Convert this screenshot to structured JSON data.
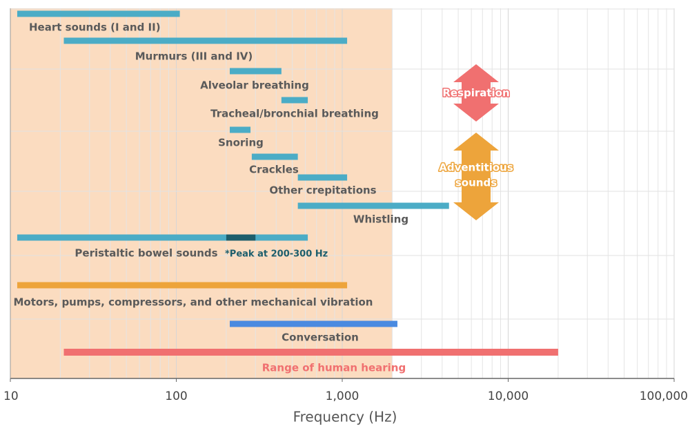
{
  "chart_data": {
    "type": "range_bar",
    "x_label": "Frequency (Hz)",
    "xscale": "log",
    "xlim": [
      10,
      100000
    ],
    "xticks": [
      10,
      100,
      {
        "value": 1000,
        "label": "1,000"
      },
      {
        "value": 10000,
        "label": "10,000"
      },
      {
        "value": 100000,
        "label": "100,000"
      }
    ],
    "xminorticks": [
      20,
      30,
      40,
      50,
      60,
      70,
      80,
      90,
      200,
      300,
      400,
      500,
      600,
      700,
      800,
      900,
      2000,
      3000,
      4000,
      5000,
      6000,
      7000,
      8000,
      9000,
      20000,
      30000,
      40000,
      50000,
      60000,
      70000,
      80000,
      90000
    ],
    "grid": true,
    "shaded_range": [
      10,
      2000
    ],
    "shaded_color": "#fbdcc0",
    "bars": [
      {
        "name": "Heart sounds (I and II)",
        "low": 11,
        "high": 105,
        "color": "#4bacc6"
      },
      {
        "name": "Murmurs (III and IV)",
        "low": 21,
        "high": 1070,
        "color": "#4bacc6"
      },
      {
        "name": "Alveolar breathing",
        "low": 210,
        "high": 430,
        "color": "#4bacc6"
      },
      {
        "name": "Tracheal/bronchial breathing",
        "low": 430,
        "high": 620,
        "color": "#4bacc6"
      },
      {
        "name": "Snoring",
        "low": 210,
        "high": 280,
        "color": "#4bacc6"
      },
      {
        "name": "Crackles",
        "low": 285,
        "high": 540,
        "color": "#4bacc6"
      },
      {
        "name": "Other crepitations",
        "low": 540,
        "high": 1070,
        "color": "#4bacc6"
      },
      {
        "name": "Whistling",
        "low": 540,
        "high": 4400,
        "color": "#4bacc6"
      },
      {
        "name": "Peristaltic bowel sounds",
        "low": 11,
        "high": 620,
        "color": "#4bacc6",
        "peak_low": 200,
        "peak_high": 300,
        "peak_color": "#1d5e6c",
        "peak_label": "*Peak at 200-300 Hz"
      },
      {
        "name": "Motors, pumps, compressors, and other mechanical vibration",
        "low": 11,
        "high": 1070,
        "color": "#eda43b"
      },
      {
        "name": "Conversation",
        "low": 210,
        "high": 2150,
        "color": "#4a8ae0"
      },
      {
        "name": "Range of human hearing",
        "low": 21,
        "high": 20000,
        "color": "#f07070"
      }
    ],
    "annotations": [
      {
        "lines": [
          "Respiration"
        ],
        "color": "#f07070"
      },
      {
        "lines": [
          "Adventitious",
          "sounds"
        ],
        "color": "#eda43b"
      }
    ]
  }
}
